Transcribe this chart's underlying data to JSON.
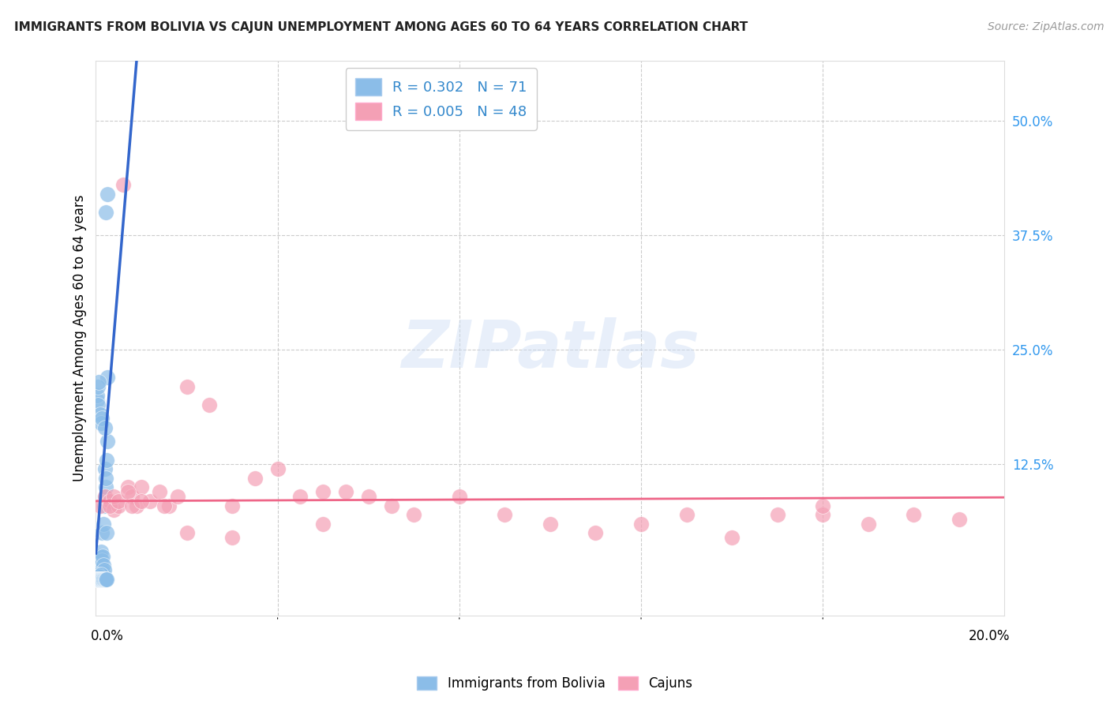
{
  "title": "IMMIGRANTS FROM BOLIVIA VS CAJUN UNEMPLOYMENT AMONG AGES 60 TO 64 YEARS CORRELATION CHART",
  "source": "Source: ZipAtlas.com",
  "ylabel": "Unemployment Among Ages 60 to 64 years",
  "ytick_labels": [
    "50.0%",
    "37.5%",
    "25.0%",
    "12.5%"
  ],
  "ytick_values": [
    0.5,
    0.375,
    0.25,
    0.125
  ],
  "xlim": [
    0.0,
    0.2
  ],
  "ylim": [
    -0.04,
    0.565
  ],
  "bolivia_color": "#8BBDE8",
  "cajun_color": "#F4A0B5",
  "bolivia_trendline_color_solid": "#3366CC",
  "bolivia_trendline_color_dash": "#99BBDD",
  "cajun_trendline_color": "#EE6688",
  "R_bolivia": 0.302,
  "N_bolivia": 71,
  "R_cajun": 0.005,
  "N_cajun": 48,
  "bolivia_x": [
    0.0002,
    0.0003,
    0.0004,
    0.0005,
    0.0005,
    0.0006,
    0.0007,
    0.0008,
    0.0008,
    0.0009,
    0.001,
    0.001,
    0.0011,
    0.0012,
    0.0013,
    0.0014,
    0.0015,
    0.0015,
    0.0016,
    0.0017,
    0.0018,
    0.0019,
    0.002,
    0.002,
    0.0021,
    0.0022,
    0.0023,
    0.0024,
    0.0025,
    0.0025,
    0.0003,
    0.0004,
    0.0005,
    0.0006,
    0.0007,
    0.0008,
    0.0009,
    0.001,
    0.0011,
    0.0012,
    0.0002,
    0.0003,
    0.0004,
    0.0005,
    0.0006,
    0.0007,
    0.0008,
    0.0009,
    0.001,
    0.0011,
    0.0013,
    0.0014,
    0.0015,
    0.0016,
    0.0017,
    0.0019,
    0.002,
    0.0021,
    0.0022,
    0.0023,
    0.0002,
    0.0003,
    0.0004,
    0.0005,
    0.0007,
    0.0009,
    0.0011,
    0.0013,
    0.002,
    0.0022,
    0.0025
  ],
  "bolivia_y": [
    0.005,
    0.01,
    0.008,
    0.015,
    0.02,
    0.005,
    0.012,
    0.008,
    0.018,
    0.005,
    0.025,
    0.01,
    0.03,
    0.015,
    0.02,
    0.05,
    0.008,
    0.025,
    0.06,
    0.015,
    0.08,
    0.01,
    0.12,
    0.09,
    0.1,
    0.11,
    0.05,
    0.13,
    0.15,
    0.22,
    0.0,
    0.002,
    0.005,
    0.0,
    0.003,
    0.0,
    0.002,
    0.0,
    0.005,
    0.0,
    0.0,
    0.0,
    0.0,
    0.0,
    0.0,
    0.0,
    0.0,
    0.0,
    0.0,
    0.0,
    0.0,
    0.0,
    0.0,
    0.0,
    0.0,
    0.0,
    0.0,
    0.0,
    0.0,
    0.0,
    0.195,
    0.2,
    0.19,
    0.21,
    0.215,
    0.18,
    0.17,
    0.175,
    0.165,
    0.4,
    0.42
  ],
  "cajun_x": [
    0.001,
    0.002,
    0.003,
    0.004,
    0.005,
    0.006,
    0.007,
    0.008,
    0.009,
    0.01,
    0.012,
    0.014,
    0.016,
    0.018,
    0.02,
    0.025,
    0.03,
    0.035,
    0.04,
    0.045,
    0.05,
    0.055,
    0.06,
    0.065,
    0.07,
    0.08,
    0.09,
    0.1,
    0.11,
    0.12,
    0.13,
    0.14,
    0.15,
    0.16,
    0.17,
    0.18,
    0.19,
    0.003,
    0.004,
    0.005,
    0.007,
    0.008,
    0.01,
    0.015,
    0.02,
    0.03,
    0.05,
    0.16
  ],
  "cajun_y": [
    0.08,
    0.09,
    0.085,
    0.075,
    0.08,
    0.43,
    0.1,
    0.09,
    0.08,
    0.1,
    0.085,
    0.095,
    0.08,
    0.09,
    0.21,
    0.19,
    0.08,
    0.11,
    0.12,
    0.09,
    0.095,
    0.095,
    0.09,
    0.08,
    0.07,
    0.09,
    0.07,
    0.06,
    0.05,
    0.06,
    0.07,
    0.045,
    0.07,
    0.07,
    0.06,
    0.07,
    0.065,
    0.08,
    0.09,
    0.085,
    0.095,
    0.08,
    0.085,
    0.08,
    0.05,
    0.045,
    0.06,
    0.08
  ],
  "watermark": "ZIPatlas",
  "background_color": "#FFFFFF",
  "grid_color": "#CCCCCC",
  "trendline_intercept_bolivia": 0.028,
  "trendline_slope_bolivia": 60.0,
  "trendline_intercept_cajun": 0.085,
  "trendline_slope_cajun": 0.02
}
